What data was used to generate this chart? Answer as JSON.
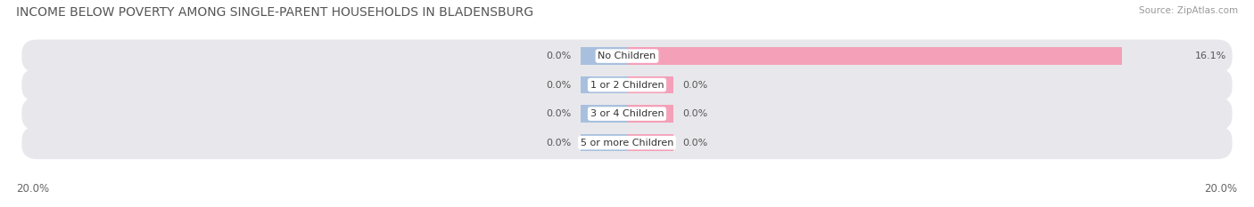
{
  "title": "INCOME BELOW POVERTY AMONG SINGLE-PARENT HOUSEHOLDS IN BLADENSBURG",
  "source": "Source: ZipAtlas.com",
  "categories": [
    "No Children",
    "1 or 2 Children",
    "3 or 4 Children",
    "5 or more Children"
  ],
  "single_father": [
    0.0,
    0.0,
    0.0,
    0.0
  ],
  "single_mother": [
    16.1,
    0.0,
    0.0,
    0.0
  ],
  "father_color": "#a8c0de",
  "mother_color": "#f4a0b8",
  "background_color": "#ffffff",
  "row_bg_color": "#e8e8ec",
  "xlim": [
    -20.0,
    20.0
  ],
  "x_left_label": "20.0%",
  "x_right_label": "20.0%",
  "title_fontsize": 10,
  "source_fontsize": 7.5,
  "label_fontsize": 8.5,
  "bar_label_fontsize": 8,
  "category_fontsize": 8,
  "father_stub": -1.5,
  "mother_stub": 1.5
}
